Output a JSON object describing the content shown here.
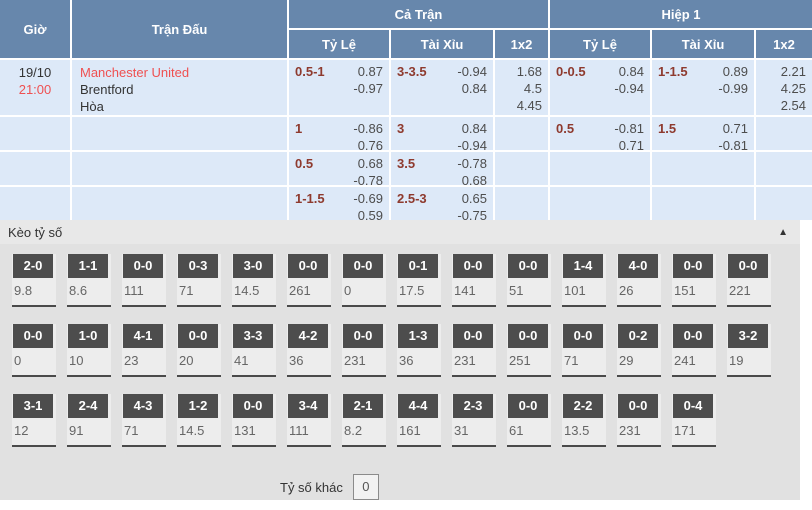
{
  "colors": {
    "header_blue": "#6787ac",
    "row_blue": "#dde9f8",
    "red_accent": "#ef5051",
    "handicap_maroon": "#8e3a2e",
    "score_box_gray": "#4d4d4d"
  },
  "odds_table": {
    "header": {
      "time": "Giờ",
      "match": "Trận Đấu",
      "full_match": "Cả Trận",
      "first_half": "Hiệp 1",
      "handicap": "Tỷ Lệ",
      "over_under": "Tài Xỉu",
      "one_x_two": "1x2"
    },
    "rows": [
      {
        "date": "19/10",
        "time": "21:00",
        "home": "Manchester United",
        "away": "Brentford",
        "draw": "Hòa",
        "ft_hdp_line": "0.5-1",
        "ft_hdp_home": "0.87",
        "ft_hdp_away": "-0.97",
        "ft_ou_line": "3-3.5",
        "ft_ou_over": "-0.94",
        "ft_ou_under": "0.84",
        "ft_1": "1.68",
        "ft_x": "4.5",
        "ft_2": "4.45",
        "h1_hdp_line": "0-0.5",
        "h1_hdp_home": "0.84",
        "h1_hdp_away": "-0.94",
        "h1_ou_line": "1-1.5",
        "h1_ou_over": "0.89",
        "h1_ou_under": "-0.99",
        "h1_1": "2.21",
        "h1_x": "4.25",
        "h1_2": "2.54"
      },
      {
        "ft_hdp_line": "1",
        "ft_hdp_home": "-0.86",
        "ft_hdp_away": "0.76",
        "ft_ou_line": "3",
        "ft_ou_over": "0.84",
        "ft_ou_under": "-0.94",
        "h1_hdp_line": "0.5",
        "h1_hdp_home": "-0.81",
        "h1_hdp_away": "0.71",
        "h1_ou_line": "1.5",
        "h1_ou_over": "0.71",
        "h1_ou_under": "-0.81"
      },
      {
        "ft_hdp_line": "0.5",
        "ft_hdp_home": "0.68",
        "ft_hdp_away": "-0.78",
        "ft_ou_line": "3.5",
        "ft_ou_over": "-0.78",
        "ft_ou_under": "0.68"
      },
      {
        "ft_hdp_line": "1-1.5",
        "ft_hdp_home": "-0.69",
        "ft_hdp_away": "0.59",
        "ft_ou_line": "2.5-3",
        "ft_ou_over": "0.65",
        "ft_ou_under": "-0.75"
      }
    ]
  },
  "score_section": {
    "title": "Kèo tỷ số",
    "collapse_icon": "▲",
    "rows": [
      [
        {
          "score": "2-0",
          "odds": "9.8"
        },
        {
          "score": "1-1",
          "odds": "8.6"
        },
        {
          "score": "0-0",
          "odds": "111"
        },
        {
          "score": "0-3",
          "odds": "71"
        },
        {
          "score": "3-0",
          "odds": "14.5"
        },
        {
          "score": "0-0",
          "odds": "261"
        },
        {
          "score": "0-0",
          "odds": "0"
        },
        {
          "score": "0-1",
          "odds": "17.5"
        },
        {
          "score": "0-0",
          "odds": "141"
        },
        {
          "score": "0-0",
          "odds": "51"
        },
        {
          "score": "1-4",
          "odds": "101"
        },
        {
          "score": "4-0",
          "odds": "26"
        },
        {
          "score": "0-0",
          "odds": "151"
        },
        {
          "score": "0-0",
          "odds": "221"
        }
      ],
      [
        {
          "score": "0-0",
          "odds": "0"
        },
        {
          "score": "1-0",
          "odds": "10"
        },
        {
          "score": "4-1",
          "odds": "23"
        },
        {
          "score": "0-0",
          "odds": "20"
        },
        {
          "score": "3-3",
          "odds": "41"
        },
        {
          "score": "4-2",
          "odds": "36"
        },
        {
          "score": "0-0",
          "odds": "231"
        },
        {
          "score": "1-3",
          "odds": "36"
        },
        {
          "score": "0-0",
          "odds": "231"
        },
        {
          "score": "0-0",
          "odds": "251"
        },
        {
          "score": "0-0",
          "odds": "71"
        },
        {
          "score": "0-2",
          "odds": "29"
        },
        {
          "score": "0-0",
          "odds": "241"
        },
        {
          "score": "3-2",
          "odds": "19"
        }
      ],
      [
        {
          "score": "3-1",
          "odds": "12"
        },
        {
          "score": "2-4",
          "odds": "91"
        },
        {
          "score": "4-3",
          "odds": "71"
        },
        {
          "score": "1-2",
          "odds": "14.5"
        },
        {
          "score": "0-0",
          "odds": "131"
        },
        {
          "score": "3-4",
          "odds": "111"
        },
        {
          "score": "2-1",
          "odds": "8.2"
        },
        {
          "score": "4-4",
          "odds": "161"
        },
        {
          "score": "2-3",
          "odds": "31"
        },
        {
          "score": "0-0",
          "odds": "61"
        },
        {
          "score": "2-2",
          "odds": "13.5"
        },
        {
          "score": "0-0",
          "odds": "231"
        },
        {
          "score": "0-4",
          "odds": "171"
        }
      ]
    ],
    "other_score_label": "Tỷ số khác",
    "other_score_value": "0"
  }
}
